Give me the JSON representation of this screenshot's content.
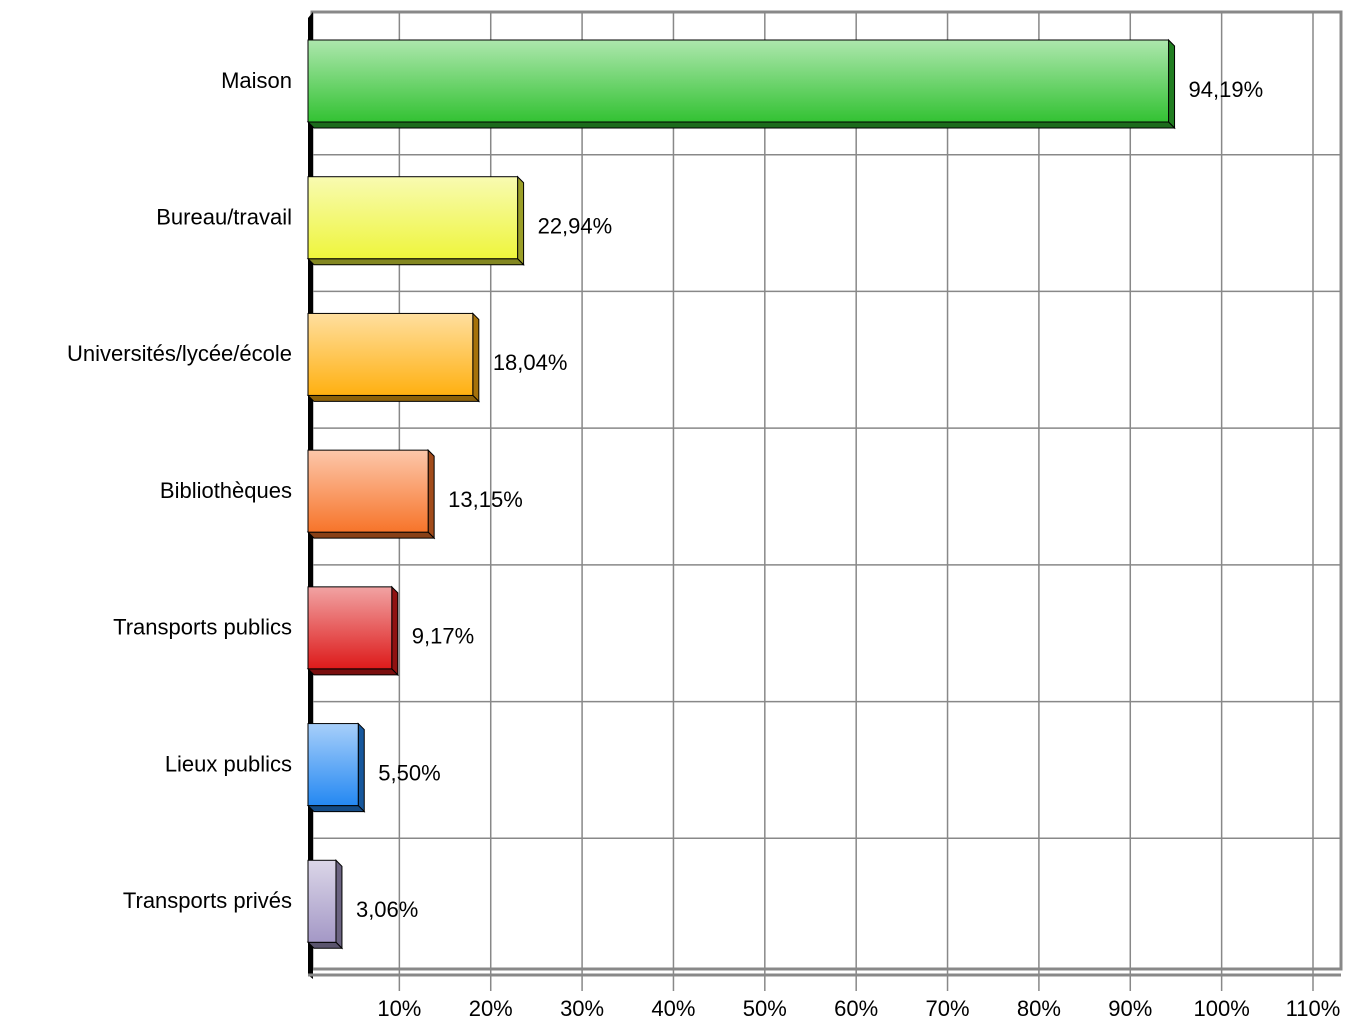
{
  "chart_data": {
    "type": "bar",
    "orientation": "horizontal",
    "categories": [
      "Maison",
      "Bureau/travail",
      "Universités/lycée/école",
      "Bibliothèques",
      "Transports publics",
      "Lieux publics",
      "Transports privés"
    ],
    "values": [
      94.19,
      22.94,
      18.04,
      13.15,
      9.17,
      5.5,
      3.06
    ],
    "value_labels": [
      "94,19%",
      "22,94%",
      "18,04%",
      "13,15%",
      "9,17%",
      "5,50%",
      "3,06%"
    ],
    "colors": [
      "#33c233",
      "#eef53c",
      "#ffb010",
      "#f7742a",
      "#dd1a1a",
      "#2488f2",
      "#a498c6"
    ],
    "xlim": [
      0,
      110
    ],
    "xticks": [
      {
        "value": 10,
        "label": "10%"
      },
      {
        "value": 20,
        "label": "20%"
      },
      {
        "value": 30,
        "label": "30%"
      },
      {
        "value": 40,
        "label": "40%"
      },
      {
        "value": 50,
        "label": "50%"
      },
      {
        "value": 60,
        "label": "60%"
      },
      {
        "value": 70,
        "label": "70%"
      },
      {
        "value": 80,
        "label": "80%"
      },
      {
        "value": 90,
        "label": "90%"
      },
      {
        "value": 100,
        "label": "100%"
      },
      {
        "value": 110,
        "label": "110%"
      }
    ],
    "grid": true
  }
}
